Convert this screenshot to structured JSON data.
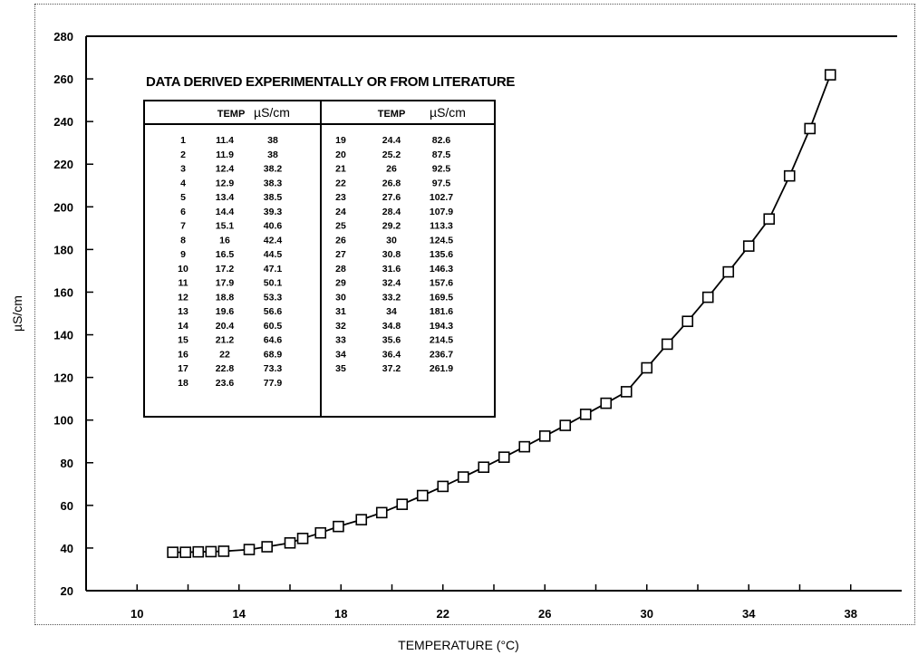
{
  "chart_data": {
    "type": "line",
    "title": "DATA DERIVED EXPERIMENTALLY OR FROM LITERATURE",
    "xlabel": "TEMPERATURE (°C)",
    "ylabel": "µS/cm",
    "xlim": [
      8,
      40
    ],
    "ylim": [
      20,
      280
    ],
    "xticks": [
      10,
      14,
      18,
      22,
      26,
      30,
      34,
      38
    ],
    "yticks": [
      20,
      40,
      60,
      80,
      100,
      120,
      140,
      160,
      180,
      200,
      220,
      240,
      260,
      280
    ],
    "marker": "square",
    "series": [
      {
        "x": [
          11.4,
          11.9,
          12.4,
          12.9,
          13.4,
          14.4,
          15.1,
          16,
          16.5,
          17.2,
          17.9,
          18.8,
          19.6,
          20.4,
          21.2,
          22,
          22.8,
          23.6,
          24.4,
          25.2,
          26,
          26.8,
          27.6,
          28.4,
          29.2,
          30,
          30.8,
          31.6,
          32.4,
          33.2,
          34,
          34.8,
          35.6,
          36.4,
          37.2
        ],
        "y": [
          38,
          38,
          38.2,
          38.3,
          38.5,
          39.3,
          40.6,
          42.4,
          44.5,
          47.1,
          50.1,
          53.3,
          56.6,
          60.5,
          64.6,
          68.9,
          73.3,
          77.9,
          82.6,
          87.5,
          92.5,
          97.5,
          102.7,
          107.9,
          113.3,
          124.5,
          135.6,
          146.3,
          157.6,
          169.5,
          181.6,
          194.3,
          214.5,
          236.7,
          261.9
        ]
      }
    ],
    "table": {
      "headers": [
        "",
        "TEMP",
        "µS/cm",
        "",
        "TEMP",
        "µS/cm"
      ],
      "left_rows": [
        [
          "1",
          "11.4",
          "38"
        ],
        [
          "2",
          "11.9",
          "38"
        ],
        [
          "3",
          "12.4",
          "38.2"
        ],
        [
          "4",
          "12.9",
          "38.3"
        ],
        [
          "5",
          "13.4",
          "38.5"
        ],
        [
          "6",
          "14.4",
          "39.3"
        ],
        [
          "7",
          "15.1",
          "40.6"
        ],
        [
          "8",
          "16",
          "42.4"
        ],
        [
          "9",
          "16.5",
          "44.5"
        ],
        [
          "10",
          "17.2",
          "47.1"
        ],
        [
          "11",
          "17.9",
          "50.1"
        ],
        [
          "12",
          "18.8",
          "53.3"
        ],
        [
          "13",
          "19.6",
          "56.6"
        ],
        [
          "14",
          "20.4",
          "60.5"
        ],
        [
          "15",
          "21.2",
          "64.6"
        ],
        [
          "16",
          "22",
          "68.9"
        ],
        [
          "17",
          "22.8",
          "73.3"
        ],
        [
          "18",
          "23.6",
          "77.9"
        ]
      ],
      "right_rows": [
        [
          "19",
          "24.4",
          "82.6"
        ],
        [
          "20",
          "25.2",
          "87.5"
        ],
        [
          "21",
          "26",
          "92.5"
        ],
        [
          "22",
          "26.8",
          "97.5"
        ],
        [
          "23",
          "27.6",
          "102.7"
        ],
        [
          "24",
          "28.4",
          "107.9"
        ],
        [
          "25",
          "29.2",
          "113.3"
        ],
        [
          "26",
          "30",
          "124.5"
        ],
        [
          "27",
          "30.8",
          "135.6"
        ],
        [
          "28",
          "31.6",
          "146.3"
        ],
        [
          "29",
          "32.4",
          "157.6"
        ],
        [
          "30",
          "33.2",
          "169.5"
        ],
        [
          "31",
          "34",
          "181.6"
        ],
        [
          "32",
          "34.8",
          "194.3"
        ],
        [
          "33",
          "35.6",
          "214.5"
        ],
        [
          "34",
          "36.4",
          "236.7"
        ],
        [
          "35",
          "37.2",
          "261.9"
        ]
      ]
    }
  }
}
